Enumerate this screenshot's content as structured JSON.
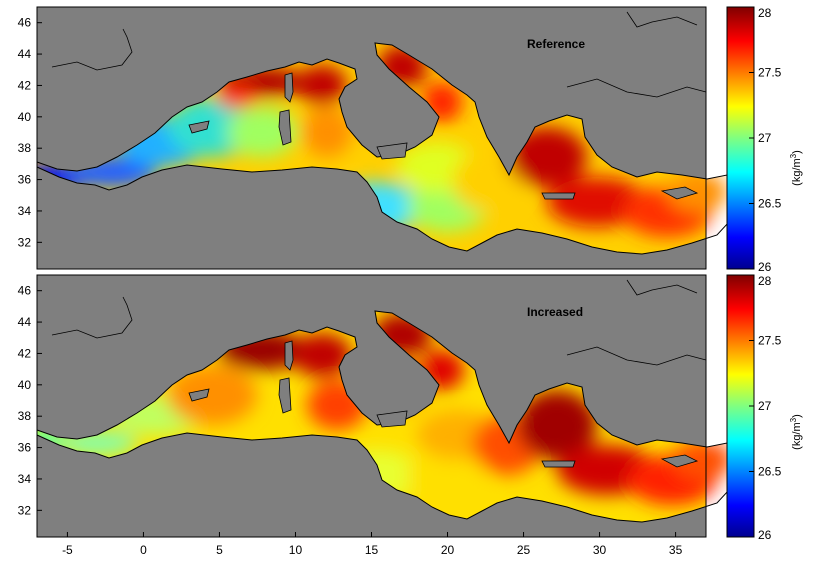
{
  "figure": {
    "panels": [
      {
        "id": "reference",
        "title": "Reference"
      },
      {
        "id": "increased",
        "title": "Increased"
      }
    ],
    "colorbar": {
      "unit": "(kg/m",
      "unit_sup": "3",
      "unit_close": ")",
      "min": 26,
      "max": 28,
      "ticks": [
        "26",
        "26.5",
        "27",
        "27.5",
        "28"
      ],
      "colormap": "jet"
    },
    "axes": {
      "lon_range": [
        -7,
        37
      ],
      "lat_range": [
        30.3,
        47
      ],
      "x_ticks": [
        "-5",
        "0",
        "5",
        "10",
        "15",
        "20",
        "25",
        "30",
        "35"
      ],
      "y_ticks": [
        "32",
        "34",
        "36",
        "38",
        "40",
        "42",
        "44",
        "46"
      ]
    },
    "colors": {
      "land": "#7f7f7f",
      "coast": "#000000"
    }
  }
}
